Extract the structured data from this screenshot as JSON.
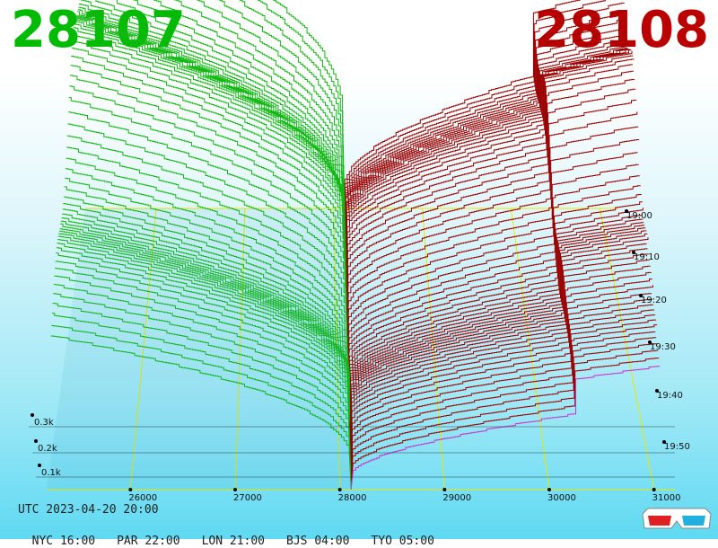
{
  "header": {
    "left_price": "28107",
    "right_price": "28108"
  },
  "colors": {
    "bid": "#00bb00",
    "ask": "#bb0000",
    "bid_line": "#11b811",
    "ask_line": "#9b0000",
    "grid": "#e8e800",
    "magenta": "#cc33cc"
  },
  "chart_data": {
    "type": "area",
    "x_axis": {
      "ticks": [
        26000,
        27000,
        28000,
        29000,
        30000,
        31000
      ],
      "range": [
        25200,
        31200
      ]
    },
    "z_axis": {
      "ticks": [
        "0.1k",
        "0.2k",
        "0.3k"
      ]
    },
    "time_axis": {
      "ticks": [
        "19:00",
        "19:10",
        "19:20",
        "19:30",
        "19:40",
        "19:50"
      ]
    },
    "mid_price": 28107.5,
    "series": [
      {
        "side": "bid",
        "price_range": [
          25200,
          28107
        ]
      },
      {
        "side": "ask",
        "price_range": [
          28108,
          31200
        ]
      }
    ]
  },
  "footer": {
    "utc": "UTC 2023-04-20 20:00",
    "zones": [
      {
        "label": "NYC 16:00"
      },
      {
        "label": "PAR 22:00"
      },
      {
        "label": "LON 21:00"
      },
      {
        "label": "BJS 04:00"
      },
      {
        "label": "TYO 05:00"
      }
    ]
  },
  "icons": {
    "glasses": "3d-glasses-icon"
  }
}
